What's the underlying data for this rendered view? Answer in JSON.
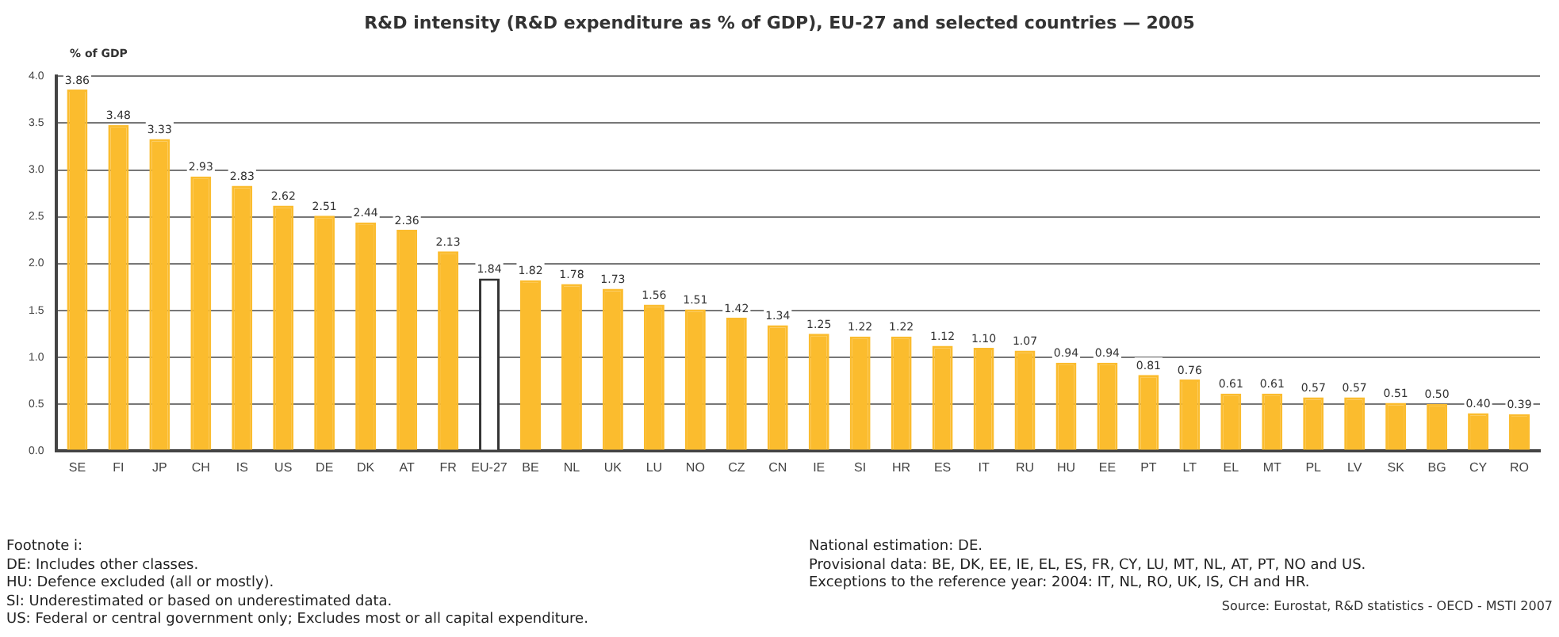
{
  "chart_data": {
    "type": "bar",
    "title": "R&D intensity (R&D expenditure as % of GDP), EU-27 and selected countries — 2005",
    "ylabel": "% of GDP",
    "categories": [
      "SE",
      "FI",
      "JP",
      "CH",
      "IS",
      "US",
      "DE",
      "DK",
      "AT",
      "FR",
      "EU-27",
      "BE",
      "NL",
      "UK",
      "LU",
      "NO",
      "CZ",
      "CN",
      "IE",
      "SI",
      "HR",
      "ES",
      "IT",
      "RU",
      "HU",
      "EE",
      "PT",
      "LT",
      "EL",
      "MT",
      "PL",
      "LV",
      "SK",
      "BG",
      "CY",
      "RO"
    ],
    "values": [
      3.86,
      3.48,
      3.33,
      2.93,
      2.83,
      2.62,
      2.51,
      2.44,
      2.36,
      2.13,
      1.84,
      1.82,
      1.78,
      1.73,
      1.56,
      1.51,
      1.42,
      1.34,
      1.25,
      1.22,
      1.22,
      1.12,
      1.1,
      1.07,
      0.94,
      0.94,
      0.81,
      0.76,
      0.61,
      0.61,
      0.57,
      0.57,
      0.51,
      0.5,
      0.4,
      0.39
    ],
    "value_labels": [
      "3.86",
      "3.48",
      "3.33",
      "2.93",
      "2.83",
      "2.62",
      "2.51",
      "2.44",
      "2.36",
      "2.13",
      "1.84",
      "1.82",
      "1.78",
      "1.73",
      "1.56",
      "1.51",
      "1.42",
      "1.34",
      "1.25",
      "1.22",
      "1.22",
      "1.12",
      "1.10",
      "1.07",
      "0.94",
      "0.94",
      "0.81",
      "0.76",
      "0.61",
      "0.61",
      "0.57",
      "0.57",
      "0.51",
      "0.50",
      "0.40",
      "0.39"
    ],
    "colors": [
      "#fbbc2e",
      "#fbbc2e",
      "#fbbc2e",
      "#fbbc2e",
      "#fbbc2e",
      "#fbbc2e",
      "#fbbc2e",
      "#fbbc2e",
      "#fbbc2e",
      "#fbbc2e",
      "#ffffff",
      "#fbbc2e",
      "#fbbc2e",
      "#fbbc2e",
      "#fbbc2e",
      "#fbbc2e",
      "#fbbc2e",
      "#fbbc2e",
      "#fbbc2e",
      "#fbbc2e",
      "#fbbc2e",
      "#fbbc2e",
      "#fbbc2e",
      "#fbbc2e",
      "#fbbc2e",
      "#fbbc2e",
      "#fbbc2e",
      "#fbbc2e",
      "#fbbc2e",
      "#fbbc2e",
      "#fbbc2e",
      "#fbbc2e",
      "#fbbc2e",
      "#fbbc2e",
      "#fbbc2e",
      "#fbbc2e"
    ],
    "ylim": [
      0,
      4
    ],
    "yticks": [
      {
        "value": 0,
        "label": "0.0"
      },
      {
        "value": 0.5,
        "label": "0.5"
      },
      {
        "value": 1,
        "label": "1.0"
      },
      {
        "value": 1.5,
        "label": "1.5"
      },
      {
        "value": 2,
        "label": "2.0"
      },
      {
        "value": 2.5,
        "label": "2.5"
      },
      {
        "value": 3,
        "label": "3.0"
      },
      {
        "value": 3.5,
        "label": "3.5"
      },
      {
        "value": 4,
        "label": "4.0"
      }
    ],
    "grid": "y",
    "legend": false,
    "annotations": [
      "Footnote i:",
      "DE: Includes other classes.",
      "HU: Defence excluded (all or mostly).",
      "SI: Underestimated or based on underestimated data.",
      "US: Federal or central government only; Excludes most or all capital expenditure.",
      "National estimation: DE.",
      "Provisional data: BE, DK, EE, IE, EL, ES, FR, CY, LU, MT, NL, AT, PT, NO and US.",
      "Exceptions to the reference year: 2004: IT, NL, RO, UK, IS, CH and HR.",
      "Source: Eurostat, R&D statistics - OECD - MSTI 2007"
    ]
  }
}
